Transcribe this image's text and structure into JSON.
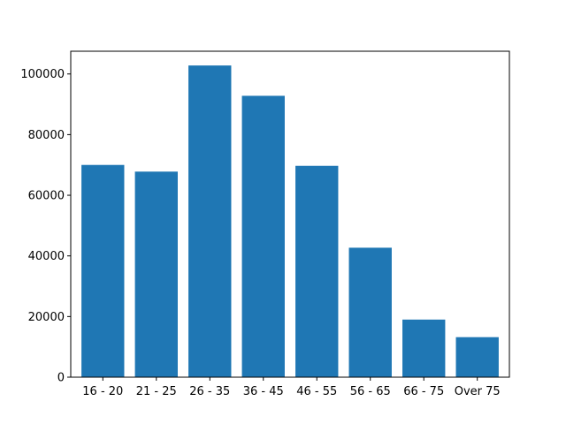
{
  "chart_data": {
    "type": "bar",
    "title": "",
    "xlabel": "",
    "ylabel": "",
    "categories": [
      "16 - 20",
      "21 - 25",
      "26 - 35",
      "36 - 45",
      "46 - 55",
      "56 - 65",
      "66 - 75",
      "Over 75"
    ],
    "values": [
      70000,
      67800,
      102800,
      92800,
      69700,
      42700,
      19000,
      13200
    ],
    "ylim": [
      0,
      107500
    ],
    "yticks": [
      0,
      20000,
      40000,
      60000,
      80000,
      100000
    ],
    "ytick_labels": [
      "0",
      "20000",
      "40000",
      "60000",
      "80000",
      "100000"
    ],
    "grid": false,
    "bar_color": "#1f77b4"
  }
}
